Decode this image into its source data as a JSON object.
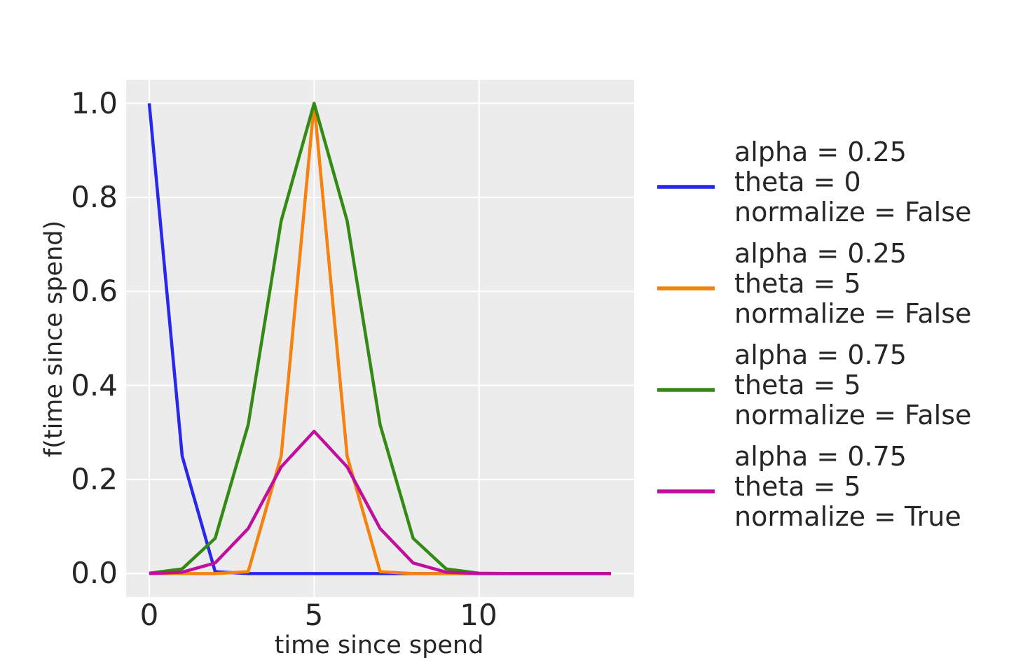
{
  "figure": {
    "background": "#ffffff",
    "axes_background": "#ececec",
    "grid_color": "#ffffff",
    "text_color": "#262626"
  },
  "chart_data": {
    "type": "line",
    "title": "",
    "xlabel": "time since spend",
    "ylabel": "f(time since spend)",
    "xlim": [
      -0.7,
      14.7
    ],
    "ylim": [
      -0.05,
      1.05
    ],
    "grid": true,
    "legend_position": "right of axes",
    "xticks": [
      0,
      5,
      10
    ],
    "xtick_labels": [
      "0",
      "5",
      "10"
    ],
    "yticks": [
      0.0,
      0.2,
      0.4,
      0.6,
      0.8,
      1.0
    ],
    "ytick_labels": [
      "0.0",
      "0.2",
      "0.4",
      "0.6",
      "0.8",
      "1.0"
    ],
    "x": [
      0,
      1,
      2,
      3,
      4,
      5,
      6,
      7,
      8,
      9,
      10,
      11,
      12,
      13,
      14
    ],
    "series": [
      {
        "name": "alpha = 0.25, theta = 0, normalize = False",
        "label_lines": [
          "alpha = 0.25",
          "theta = 0",
          "normalize = False"
        ],
        "color": "#2727ee",
        "values": [
          1.0,
          0.25,
          0.0039,
          3.8e-06,
          0,
          0,
          0,
          0,
          0,
          0,
          0,
          0,
          0,
          0,
          0
        ]
      },
      {
        "name": "alpha = 0.25, theta = 5, normalize = False",
        "label_lines": [
          "alpha = 0.25",
          "theta = 5",
          "normalize = False"
        ],
        "color": "#f5820f",
        "values": [
          0,
          0,
          3.8e-06,
          0.0039,
          0.25,
          1.0,
          0.25,
          0.0039,
          3.8e-06,
          0,
          0,
          0,
          0,
          0,
          0
        ]
      },
      {
        "name": "alpha = 0.75, theta = 5, normalize = False",
        "label_lines": [
          "alpha = 0.75",
          "theta = 5",
          "normalize = False"
        ],
        "color": "#338a14",
        "values": [
          0.00075,
          0.01,
          0.0751,
          0.3164,
          0.75,
          1.0,
          0.75,
          0.3164,
          0.0751,
          0.01,
          0.00075,
          3.2e-05,
          0,
          0,
          0
        ]
      },
      {
        "name": "alpha = 0.75, theta = 5, normalize = True",
        "label_lines": [
          "alpha = 0.75",
          "theta = 5",
          "normalize = True"
        ],
        "color": "#c10f9d",
        "values": [
          0.00023,
          0.003,
          0.0227,
          0.0957,
          0.2269,
          0.3026,
          0.2269,
          0.0957,
          0.0227,
          0.003,
          0.00023,
          1e-05,
          0,
          0,
          0
        ]
      }
    ]
  }
}
